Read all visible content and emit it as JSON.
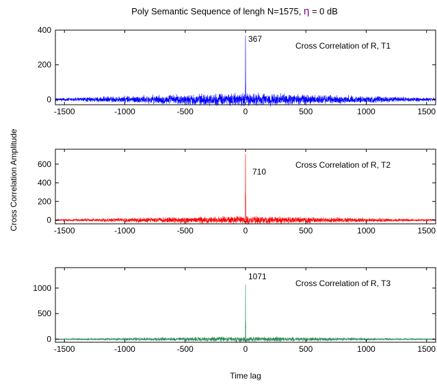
{
  "chart_data": {
    "type": "line",
    "title_text": "Poly Semantic Sequence of lengh N=1575,",
    "title_symbol": "η",
    "title_value": " = 0 dB",
    "title_symbol_color": "#800080",
    "xlabel": "Time lag",
    "ylabel": "Cross Correlation Amplitude",
    "xlim": [
      -1575,
      1575
    ],
    "xticks": [
      -1500,
      -1000,
      -500,
      0,
      500,
      1000,
      1500
    ],
    "subplots": [
      {
        "legend": "Cross Correlation of R, T1",
        "color": "#0000ff",
        "peak": {
          "x": 0,
          "y": 367,
          "label": "367"
        },
        "ylim": [
          -30,
          400
        ],
        "yticks": [
          0,
          200,
          400
        ],
        "noise_amplitude": 45
      },
      {
        "legend": "Cross Correlation of R, T2",
        "color": "#ff0000",
        "peak": {
          "x": 0,
          "y": 710,
          "label": "710"
        },
        "ylim": [
          -40,
          760
        ],
        "yticks": [
          0,
          200,
          400,
          600
        ],
        "noise_amplitude": 50
      },
      {
        "legend": "Cross Correlation of R, T3",
        "color": "#2e8b57",
        "peak": {
          "x": 0,
          "y": 1071,
          "label": "1071"
        },
        "ylim": [
          -60,
          1400
        ],
        "yticks": [
          0,
          500,
          1000
        ],
        "noise_amplitude": 60
      }
    ]
  }
}
